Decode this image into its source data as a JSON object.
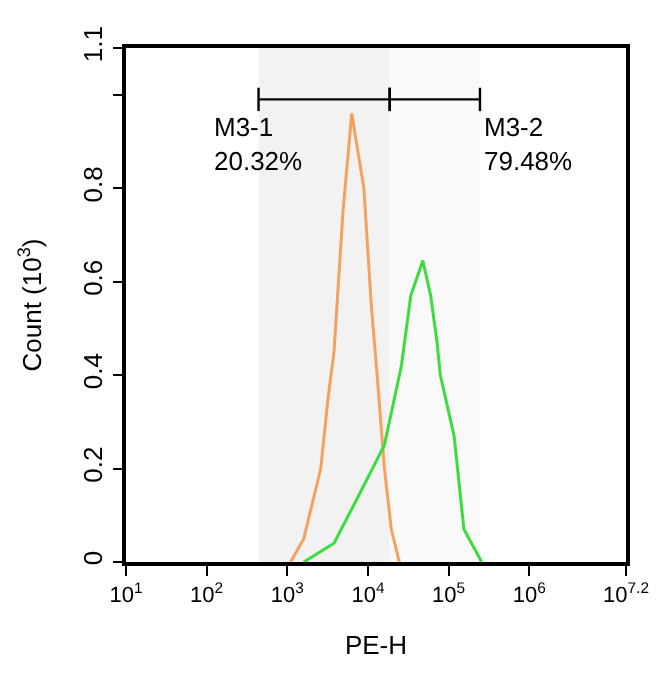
{
  "chart_data": {
    "type": "line",
    "xlabel": "PE-H",
    "ylabel": "Count (10$^{3}$)",
    "log": "x",
    "xlim": [
      10,
      15848932
    ],
    "xticks": [
      {
        "value": 10,
        "label": "10$^{1}$"
      },
      {
        "value": 100,
        "label": "10$^{2}$"
      },
      {
        "value": 1000,
        "label": "10$^{3}$"
      },
      {
        "value": 10000,
        "label": "10$^{4}$"
      },
      {
        "value": 100000,
        "label": "10$^{5}$"
      },
      {
        "value": 1000000,
        "label": "10$^{6}$"
      },
      {
        "value": 15848932,
        "label": "10$^{7.2}$"
      }
    ],
    "ylim": [
      0,
      1.1
    ],
    "yticks": [
      0,
      0.2,
      0.4,
      0.6,
      0.8,
      {
        "value": 1.0,
        "label": null
      },
      1.1
    ],
    "series": [
      {
        "color": "#f4a15d",
        "x": [
          1100,
          1600,
          2600,
          3200,
          3800,
          4900,
          6300,
          8900,
          11000,
          13000,
          16000,
          19500,
          24500
        ],
        "values": [
          0,
          0.05,
          0.2,
          0.35,
          0.45,
          0.75,
          0.96,
          0.8,
          0.55,
          0.4,
          0.2,
          0.07,
          0
        ]
      },
      {
        "color": "#3ddc3d",
        "x": [
          1600,
          3800,
          8100,
          16000,
          26000,
          34000,
          48000,
          60000,
          72000,
          79000,
          117000,
          155000,
          257000
        ],
        "values": [
          0,
          0.04,
          0.15,
          0.25,
          0.42,
          0.57,
          0.645,
          0.57,
          0.47,
          0.4,
          0.27,
          0.07,
          0
        ]
      }
    ],
    "bands": [
      {
        "axis": "x",
        "from": 440,
        "to": 18600,
        "label": "M3-1\n20.32%"
      },
      {
        "axis": "x",
        "from": 18600,
        "to": 245000,
        "label": "M3-2\n79.48%"
      }
    ],
    "grid": false,
    "line_style": "solid",
    "marker": "none"
  }
}
